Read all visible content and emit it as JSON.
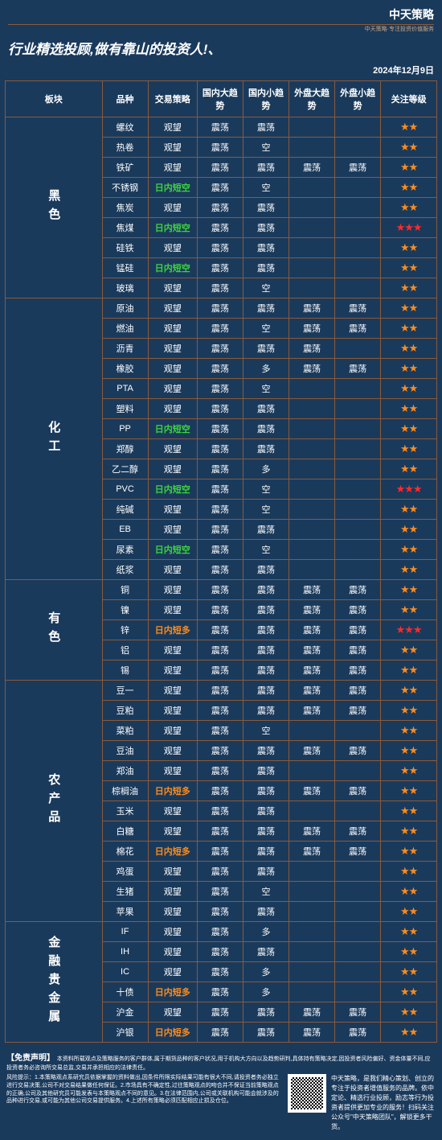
{
  "logo": "中天策略",
  "logo_sub": "中天策略·专注投资价值服务",
  "title": "行业精选投顾,做有靠山的投资人!、",
  "date": "2024年12月9日",
  "columns": [
    "板块",
    "品种",
    "交易策略",
    "国内大趋势",
    "国内小趋势",
    "外盘大趋势",
    "外盘小趋势",
    "关注等级"
  ],
  "col_widths": [
    "36px",
    "54px",
    "58px",
    "54px",
    "54px",
    "54px",
    "54px",
    "66px"
  ],
  "strategy_colors": {
    "观望": "",
    "日内短空": "green",
    "日内短多": "orange"
  },
  "star_orange_color": "#ff8c1a",
  "star_red_color": "#ff2a2a",
  "bg_color": "#1a3a5c",
  "border_color": "#8a5a3a",
  "sectors": [
    {
      "name": "黑色",
      "rows": [
        {
          "p": "螺纹",
          "s": "观望",
          "d": [
            "震荡",
            "震荡",
            "",
            ""
          ],
          "r": 2
        },
        {
          "p": "热卷",
          "s": "观望",
          "d": [
            "震荡",
            "空",
            "",
            ""
          ],
          "r": 2
        },
        {
          "p": "铁矿",
          "s": "观望",
          "d": [
            "震荡",
            "震荡",
            "震荡",
            "震荡"
          ],
          "r": 2
        },
        {
          "p": "不锈钢",
          "s": "日内短空",
          "d": [
            "震荡",
            "空",
            "",
            ""
          ],
          "r": 2
        },
        {
          "p": "焦炭",
          "s": "观望",
          "d": [
            "震荡",
            "震荡",
            "",
            ""
          ],
          "r": 2
        },
        {
          "p": "焦煤",
          "s": "日内短空",
          "d": [
            "震荡",
            "震荡",
            "",
            ""
          ],
          "r": 3,
          "red": true
        },
        {
          "p": "硅铁",
          "s": "观望",
          "d": [
            "震荡",
            "震荡",
            "",
            ""
          ],
          "r": 2
        },
        {
          "p": "锰硅",
          "s": "日内短空",
          "d": [
            "震荡",
            "震荡",
            "",
            ""
          ],
          "r": 2
        },
        {
          "p": "玻璃",
          "s": "观望",
          "d": [
            "震荡",
            "空",
            "",
            ""
          ],
          "r": 2
        }
      ]
    },
    {
      "name": "化工",
      "rows": [
        {
          "p": "原油",
          "s": "观望",
          "d": [
            "震荡",
            "震荡",
            "震荡",
            "震荡"
          ],
          "r": 2
        },
        {
          "p": "燃油",
          "s": "观望",
          "d": [
            "震荡",
            "空",
            "震荡",
            "震荡"
          ],
          "r": 2
        },
        {
          "p": "沥青",
          "s": "观望",
          "d": [
            "震荡",
            "震荡",
            "震荡",
            ""
          ],
          "r": 2
        },
        {
          "p": "橡胶",
          "s": "观望",
          "d": [
            "震荡",
            "多",
            "震荡",
            "震荡"
          ],
          "r": 2
        },
        {
          "p": "PTA",
          "s": "观望",
          "d": [
            "震荡",
            "空",
            "",
            ""
          ],
          "r": 2
        },
        {
          "p": "塑料",
          "s": "观望",
          "d": [
            "震荡",
            "震荡",
            "",
            ""
          ],
          "r": 2
        },
        {
          "p": "PP",
          "s": "日内短空",
          "d": [
            "震荡",
            "震荡",
            "",
            ""
          ],
          "r": 2
        },
        {
          "p": "郑醇",
          "s": "观望",
          "d": [
            "震荡",
            "震荡",
            "",
            ""
          ],
          "r": 2
        },
        {
          "p": "乙二醇",
          "s": "观望",
          "d": [
            "震荡",
            "多",
            "",
            ""
          ],
          "r": 2
        },
        {
          "p": "PVC",
          "s": "日内短空",
          "d": [
            "震荡",
            "空",
            "",
            ""
          ],
          "r": 3,
          "red": true
        },
        {
          "p": "纯碱",
          "s": "观望",
          "d": [
            "震荡",
            "空",
            "",
            ""
          ],
          "r": 2
        },
        {
          "p": "EB",
          "s": "观望",
          "d": [
            "震荡",
            "震荡",
            "",
            ""
          ],
          "r": 2
        },
        {
          "p": "尿素",
          "s": "日内短空",
          "d": [
            "震荡",
            "空",
            "",
            ""
          ],
          "r": 2
        },
        {
          "p": "纸浆",
          "s": "观望",
          "d": [
            "震荡",
            "震荡",
            "",
            ""
          ],
          "r": 2
        }
      ]
    },
    {
      "name": "有色",
      "rows": [
        {
          "p": "铜",
          "s": "观望",
          "d": [
            "震荡",
            "震荡",
            "震荡",
            "震荡"
          ],
          "r": 2
        },
        {
          "p": "镍",
          "s": "观望",
          "d": [
            "震荡",
            "震荡",
            "震荡",
            "震荡"
          ],
          "r": 2
        },
        {
          "p": "锌",
          "s": "日内短多",
          "d": [
            "震荡",
            "震荡",
            "震荡",
            "震荡"
          ],
          "r": 3,
          "red": true
        },
        {
          "p": "铝",
          "s": "观望",
          "d": [
            "震荡",
            "震荡",
            "震荡",
            "震荡"
          ],
          "r": 2
        },
        {
          "p": "锡",
          "s": "观望",
          "d": [
            "震荡",
            "震荡",
            "震荡",
            "震荡"
          ],
          "r": 2
        }
      ]
    },
    {
      "name": "农产品",
      "rows": [
        {
          "p": "豆一",
          "s": "观望",
          "d": [
            "震荡",
            "震荡",
            "震荡",
            "震荡"
          ],
          "r": 2
        },
        {
          "p": "豆粕",
          "s": "观望",
          "d": [
            "震荡",
            "震荡",
            "震荡",
            "震荡"
          ],
          "r": 2
        },
        {
          "p": "菜粕",
          "s": "观望",
          "d": [
            "震荡",
            "空",
            "",
            ""
          ],
          "r": 2
        },
        {
          "p": "豆油",
          "s": "观望",
          "d": [
            "震荡",
            "震荡",
            "震荡",
            "震荡"
          ],
          "r": 2
        },
        {
          "p": "郑油",
          "s": "观望",
          "d": [
            "震荡",
            "震荡",
            "",
            ""
          ],
          "r": 2
        },
        {
          "p": "棕榈油",
          "s": "日内短多",
          "d": [
            "震荡",
            "震荡",
            "震荡",
            "震荡"
          ],
          "r": 2
        },
        {
          "p": "玉米",
          "s": "观望",
          "d": [
            "震荡",
            "震荡",
            "",
            ""
          ],
          "r": 2
        },
        {
          "p": "白糖",
          "s": "观望",
          "d": [
            "震荡",
            "震荡",
            "震荡",
            "震荡"
          ],
          "r": 2
        },
        {
          "p": "棉花",
          "s": "日内短多",
          "d": [
            "震荡",
            "震荡",
            "震荡",
            "震荡"
          ],
          "r": 2
        },
        {
          "p": "鸡蛋",
          "s": "观望",
          "d": [
            "震荡",
            "震荡",
            "",
            ""
          ],
          "r": 2
        },
        {
          "p": "生猪",
          "s": "观望",
          "d": [
            "震荡",
            "空",
            "",
            ""
          ],
          "r": 2
        },
        {
          "p": "苹果",
          "s": "观望",
          "d": [
            "震荡",
            "震荡",
            "",
            ""
          ],
          "r": 2
        }
      ]
    },
    {
      "name": "金融贵金属",
      "rows": [
        {
          "p": "IF",
          "s": "观望",
          "d": [
            "震荡",
            "多",
            "",
            ""
          ],
          "r": 2
        },
        {
          "p": "IH",
          "s": "观望",
          "d": [
            "震荡",
            "震荡",
            "",
            ""
          ],
          "r": 2
        },
        {
          "p": "IC",
          "s": "观望",
          "d": [
            "震荡",
            "多",
            "",
            ""
          ],
          "r": 2
        },
        {
          "p": "十债",
          "s": "日内短多",
          "d": [
            "震荡",
            "多",
            "",
            ""
          ],
          "r": 2
        },
        {
          "p": "沪金",
          "s": "观望",
          "d": [
            "震荡",
            "震荡",
            "震荡",
            "震荡"
          ],
          "r": 2
        },
        {
          "p": "沪银",
          "s": "日内短多",
          "d": [
            "震荡",
            "震荡",
            "震荡",
            "震荡"
          ],
          "r": 2
        }
      ]
    }
  ],
  "disclaimer_title": "【免责声明】",
  "disclaimer_inline": "本资料所载观点及策略服务的客户群体,属于期货品种的客户状况,用于机构大方向以及趋势研判,具体持有策略决定,因投资者风险偏好、资金体量不同,应投资者务必咨询所交易总监,交易并承担相应的法律责任。",
  "risk_text": "风险提示：1.本策略观点系研究员依据掌握的资料做出,因条件所限实际结果可能有很大不同,请投资者务必独立进行交易决策,公司不对交易结果做任何保证。2.市场具有不确定性,过往策略观点的吻合并不保证当前策略观点的正确,公司及其他研究员可能发表与本策略观点不同的意见。3.在法律范围内,公司或关联机构可能会就涉及的品种进行交易,或可能为其他公司交易提供服务。4.上述所有策略必须匹配相应止损及仓位。",
  "footer_right": "中天策略，是我们精心策划、创立的专注于投资者增值服务的品牌。依中定论、精选行业投顾，励志等行为投资者提供更加专业的服务！扫码关注公众号\"中天策略团队\"，解锁更多干货。"
}
